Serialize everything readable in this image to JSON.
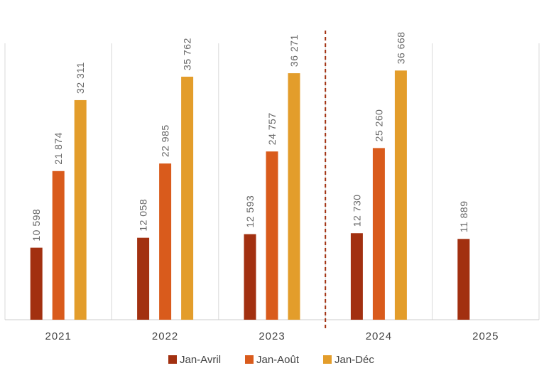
{
  "chart_data": {
    "type": "bar",
    "categories": [
      "2021",
      "2022",
      "2023",
      "2024",
      "2025"
    ],
    "series": [
      {
        "name": "Jan-Avril",
        "values": [
          10598,
          12058,
          12593,
          12730,
          11889
        ],
        "labels": [
          "10 598",
          "12 058",
          "12 593",
          "12 730",
          "11 889"
        ],
        "color": "#a23010"
      },
      {
        "name": "Jan-Août",
        "values": [
          21874,
          22985,
          24757,
          25260,
          null
        ],
        "labels": [
          "21 874",
          "22 985",
          "24 757",
          "25 260",
          ""
        ],
        "color": "#d95b1c"
      },
      {
        "name": "Jan-Déc",
        "values": [
          32311,
          35762,
          36271,
          36668,
          null
        ],
        "labels": [
          "32 311",
          "35 762",
          "36 271",
          "36 668",
          ""
        ],
        "color": "#e39d2b"
      }
    ],
    "ylim": [
      0,
      40000
    ],
    "grid": "vertical separators",
    "legend": "bottom-center",
    "marker": {
      "type": "dashed-vertical-line",
      "between": [
        "2023",
        "2024"
      ],
      "color": "#a23010"
    }
  }
}
